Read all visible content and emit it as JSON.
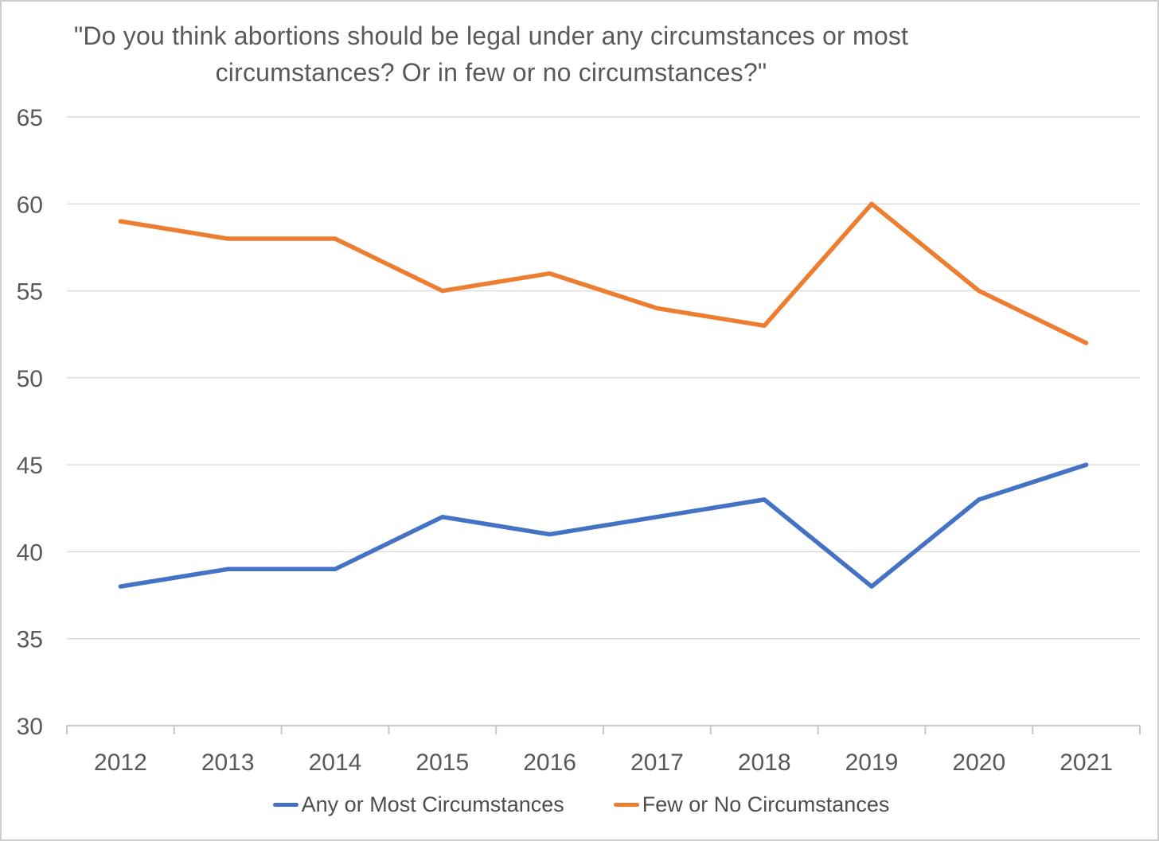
{
  "chart_data": {
    "type": "line",
    "title": "\"Do you think abortions should be legal under any circumstances or most circumstances? Or in few or no circumstances?\"",
    "categories": [
      "2012",
      "2013",
      "2014",
      "2015",
      "2016",
      "2017",
      "2018",
      "2019",
      "2020",
      "2021"
    ],
    "series": [
      {
        "name": "Any or Most Circumstances",
        "values": [
          38,
          39,
          39,
          42,
          41,
          42,
          43,
          38,
          43,
          45
        ],
        "color": "#4472C4"
      },
      {
        "name": "Few or No Circumstances",
        "values": [
          59,
          58,
          58,
          55,
          56,
          54,
          53,
          60,
          55,
          52
        ],
        "color": "#ED7D31"
      }
    ],
    "xlabel": "",
    "ylabel": "",
    "ylim": [
      30,
      65
    ],
    "y_ticks": [
      30,
      35,
      40,
      45,
      50,
      55,
      60,
      65
    ],
    "grid": "horizontal",
    "legend_position": "bottom",
    "gridline_color": "#D9D9D9",
    "axis_line_color": "#C8C8C8",
    "label_color": "#595959"
  }
}
